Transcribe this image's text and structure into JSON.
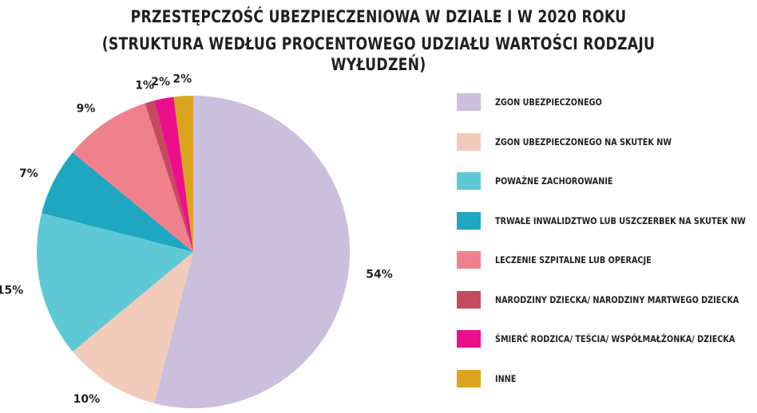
{
  "chart_data": {
    "type": "pie",
    "title_line1": "PRZESTĘPCZOŚĆ UBEZPIECZENIOWA W DZIALE I W 2020 ROKU",
    "title_line2": "(STRUKTURA WEDŁUG PROCENTOWEGO UDZIAŁU WARTOŚCI RODZAJU WYŁUDZEŃ)",
    "legend_position": "right",
    "slices": [
      {
        "name": "ZGON UBEZPIECZONEGO",
        "value": 54,
        "label": "54%",
        "color": "#cbbfde"
      },
      {
        "name": "ZGON UBEZPIECZONEGO NA SKUTEK NW",
        "value": 10,
        "label": "10%",
        "color": "#f2cbbb"
      },
      {
        "name": "POWAŻNE ZACHOROWANIE",
        "value": 15,
        "label": "15%",
        "color": "#5ec9d4"
      },
      {
        "name": "TRWAŁE INWALIDZTWO LUB USZCZERBEK NA SKUTEK NW",
        "value": 7,
        "label": "7%",
        "color": "#1fa7c2"
      },
      {
        "name": "LECZENIE SZPITALNE LUB OPERACJE",
        "value": 9,
        "label": "9%",
        "color": "#f0818c"
      },
      {
        "name": "NARODZINY DZIECKA/ NARODZINY MARTWEGO DZIECKA",
        "value": 1,
        "label": "1%",
        "color": "#c54a5f"
      },
      {
        "name": "ŚMIERĆ RODZICA/ TEŚCIA/ WSPÓŁMAŁŻONKA/ DZIECKA",
        "value": 2,
        "label": "2%",
        "color": "#ec0f8c"
      },
      {
        "name": "INNE",
        "value": 2,
        "label": "2%",
        "color": "#dba41f"
      }
    ]
  }
}
